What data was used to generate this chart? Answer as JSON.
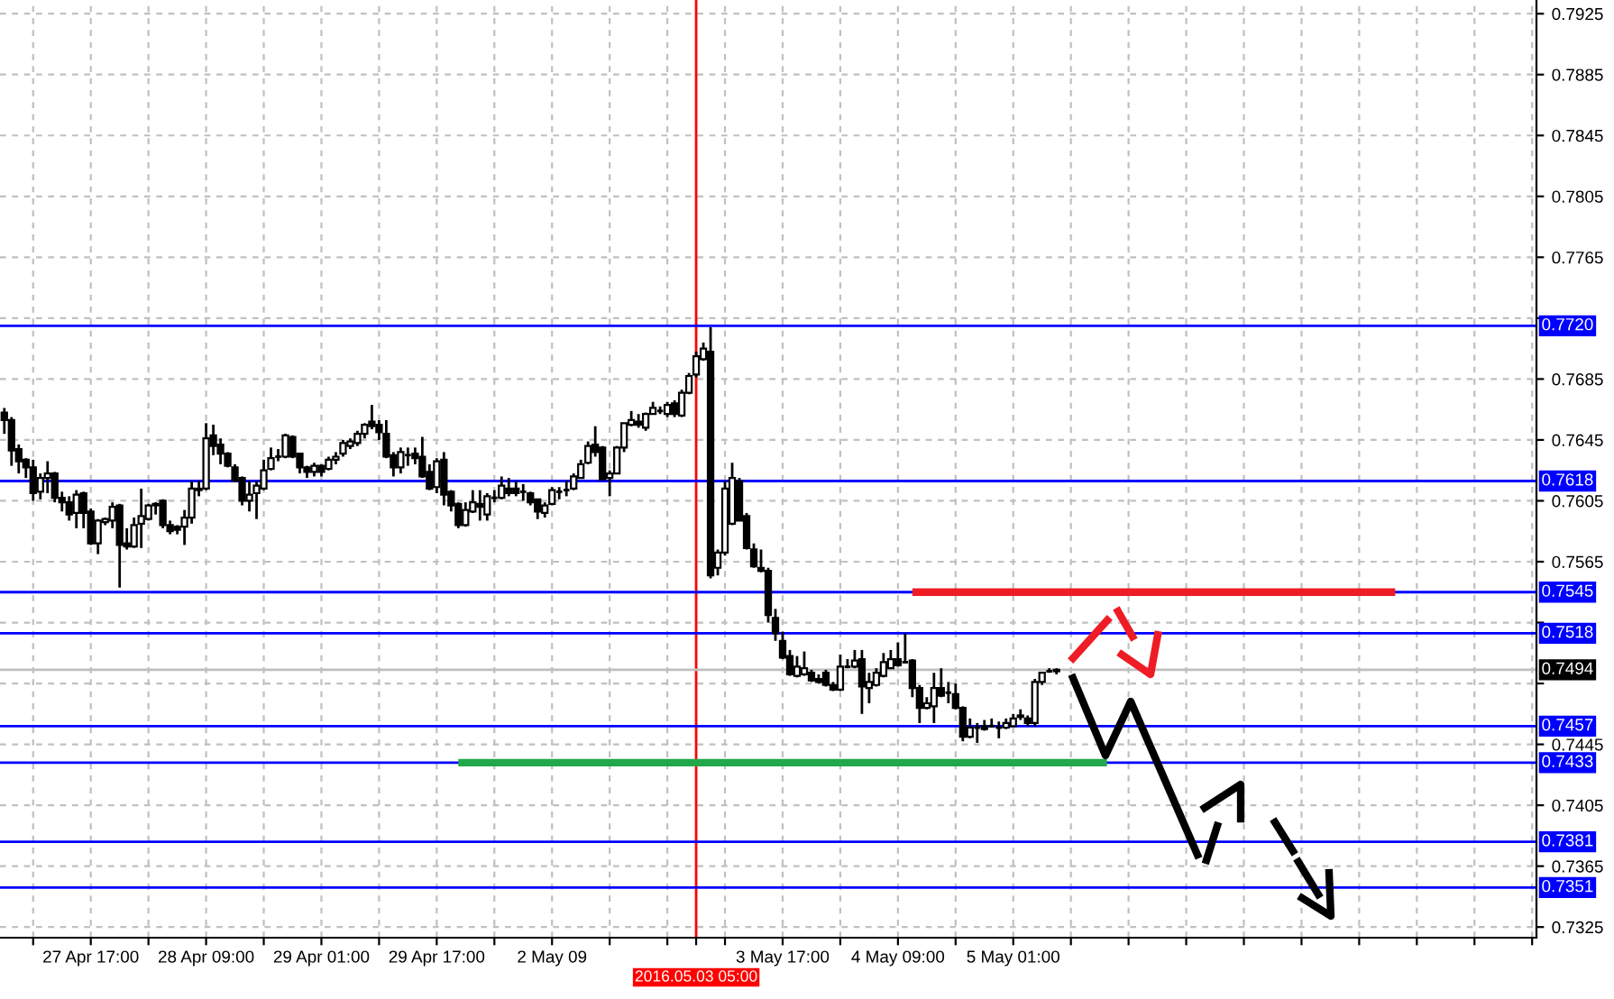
{
  "chart_data": {
    "type": "candlestick",
    "categories": [
      null,
      null,
      null,
      null,
      null,
      null,
      null,
      null,
      null,
      null,
      null,
      null,
      "27 Apr 17:00",
      null,
      null,
      null,
      null,
      null,
      null,
      null,
      null,
      null,
      null,
      null,
      null,
      null,
      null,
      null,
      "28 Apr 09:00",
      null,
      null,
      null,
      null,
      null,
      null,
      null,
      null,
      null,
      null,
      null,
      null,
      null,
      null,
      null,
      "29 Apr 01:00",
      null,
      null,
      null,
      null,
      null,
      null,
      null,
      null,
      null,
      null,
      null,
      null,
      null,
      null,
      null,
      "29 Apr 17:00",
      null,
      null,
      null,
      null,
      null,
      null,
      null,
      null,
      null,
      null,
      null,
      null,
      null,
      null,
      null,
      "2 May 09",
      null,
      null,
      null,
      null,
      null,
      null,
      null,
      null,
      null,
      null,
      null,
      null,
      null,
      null,
      null,
      null,
      null,
      null,
      null,
      "2016.05.03 05:00",
      null,
      null,
      null,
      null,
      null,
      null,
      null,
      null,
      null,
      null,
      null,
      "3 May 17:00",
      null,
      null,
      null,
      null,
      null,
      null,
      null,
      null,
      null,
      null,
      null,
      null,
      null,
      null,
      null,
      "4 May 09:00",
      null,
      null,
      null,
      null,
      null,
      null,
      null,
      null,
      null,
      null,
      null,
      null,
      null,
      null,
      null,
      "5 May 01:00",
      null,
      null,
      null,
      null,
      null,
      null,
      null,
      null,
      null,
      null,
      null,
      null,
      null,
      null,
      null,
      null,
      null,
      null,
      null,
      null,
      null,
      null,
      null,
      null,
      null,
      null,
      null,
      null,
      null,
      null,
      null,
      null,
      null,
      null,
      null,
      null,
      null,
      null,
      null,
      null,
      null,
      null,
      null,
      null,
      null,
      null,
      null,
      null,
      null,
      null,
      null,
      null,
      null,
      null,
      null,
      null,
      null,
      null,
      null,
      null,
      null,
      null,
      null,
      null,
      null,
      null,
      null,
      null,
      null,
      null,
      null,
      null
    ],
    "ohlc": [
      [
        0.7663,
        0.7666,
        0.7649,
        0.7658
      ],
      [
        0.7658,
        0.766,
        0.7628,
        0.7638
      ],
      [
        0.7639,
        0.7642,
        0.7623,
        0.7631
      ],
      [
        0.7632,
        0.7633,
        0.762,
        0.7627
      ],
      [
        0.7627,
        0.7632,
        0.7605,
        0.761
      ],
      [
        0.7611,
        0.7623,
        0.7606,
        0.762
      ],
      [
        0.762,
        0.7631,
        0.761,
        0.7623
      ],
      [
        0.7623,
        0.7624,
        0.7604,
        0.7607
      ],
      [
        0.7607,
        0.7611,
        0.7598,
        0.7604
      ],
      [
        0.7604,
        0.7608,
        0.7592,
        0.7596
      ],
      [
        0.7597,
        0.7612,
        0.7587,
        0.7609
      ],
      [
        0.761,
        0.7611,
        0.7587,
        0.7597
      ],
      [
        0.7598,
        0.76,
        0.7576,
        0.7577
      ],
      [
        0.7577,
        0.7593,
        0.757,
        0.7592
      ],
      [
        0.7591,
        0.7594,
        0.7589,
        0.7593
      ],
      [
        0.7592,
        0.7604,
        0.7587,
        0.7601
      ],
      [
        0.7602,
        0.7603,
        0.7548,
        0.7576
      ],
      [
        0.7577,
        0.7587,
        0.7573,
        0.7575
      ],
      [
        0.7575,
        0.7594,
        0.7574,
        0.7589
      ],
      [
        0.759,
        0.7613,
        0.7574,
        0.7595
      ],
      [
        0.7593,
        0.7603,
        0.7592,
        0.7602
      ],
      [
        0.7602,
        0.7604,
        0.7596,
        0.7603
      ],
      [
        0.7605,
        0.7606,
        0.7587,
        0.7589
      ],
      [
        0.7589,
        0.7592,
        0.7583,
        0.7585
      ],
      [
        0.7588,
        0.7589,
        0.7583,
        0.7586
      ],
      [
        0.7588,
        0.7599,
        0.7576,
        0.7594
      ],
      [
        0.7594,
        0.7618,
        0.759,
        0.7613
      ],
      [
        0.7612,
        0.7618,
        0.7608,
        0.7613
      ],
      [
        0.7613,
        0.7656,
        0.7612,
        0.7646
      ],
      [
        0.7648,
        0.7655,
        0.7635,
        0.7641
      ],
      [
        0.7642,
        0.7646,
        0.7629,
        0.7636
      ],
      [
        0.7636,
        0.7637,
        0.7627,
        0.7628
      ],
      [
        0.7627,
        0.7629,
        0.7618,
        0.7618
      ],
      [
        0.762,
        0.7621,
        0.7602,
        0.7605
      ],
      [
        0.7605,
        0.7618,
        0.7598,
        0.7609
      ],
      [
        0.761,
        0.7618,
        0.7593,
        0.7615
      ],
      [
        0.7613,
        0.7632,
        0.7612,
        0.7625
      ],
      [
        0.7626,
        0.764,
        0.7625,
        0.7633
      ],
      [
        0.7634,
        0.7639,
        0.7631,
        0.7634
      ],
      [
        0.7634,
        0.7649,
        0.7633,
        0.7648
      ],
      [
        0.7647,
        0.7648,
        0.7633,
        0.7634
      ],
      [
        0.7636,
        0.7636,
        0.7623,
        0.7627
      ],
      [
        0.7627,
        0.7628,
        0.762,
        0.7624
      ],
      [
        0.7624,
        0.763,
        0.7621,
        0.7628
      ],
      [
        0.7628,
        0.7629,
        0.7621,
        0.7624
      ],
      [
        0.7626,
        0.7634,
        0.7625,
        0.7632
      ],
      [
        0.7632,
        0.7637,
        0.7629,
        0.7634
      ],
      [
        0.7636,
        0.7645,
        0.7634,
        0.7643
      ],
      [
        0.7641,
        0.7646,
        0.7639,
        0.7644
      ],
      [
        0.7643,
        0.7651,
        0.7641,
        0.7649
      ],
      [
        0.7649,
        0.7656,
        0.7646,
        0.7655
      ],
      [
        0.7657,
        0.7668,
        0.7652,
        0.7654
      ],
      [
        0.7655,
        0.7658,
        0.7645,
        0.765
      ],
      [
        0.7649,
        0.7658,
        0.7633,
        0.7634
      ],
      [
        0.7635,
        0.7637,
        0.7621,
        0.7627
      ],
      [
        0.7627,
        0.764,
        0.7623,
        0.7637
      ],
      [
        0.7635,
        0.764,
        0.7628,
        0.7635
      ],
      [
        0.7636,
        0.764,
        0.7629,
        0.7633
      ],
      [
        0.7634,
        0.7647,
        0.762,
        0.7621
      ],
      [
        0.7624,
        0.7629,
        0.7612,
        0.7613
      ],
      [
        0.7614,
        0.7633,
        0.761,
        0.7631
      ],
      [
        0.7632,
        0.7637,
        0.7602,
        0.7609
      ],
      [
        0.7611,
        0.7612,
        0.7598,
        0.7602
      ],
      [
        0.7603,
        0.7604,
        0.7587,
        0.7589
      ],
      [
        0.7589,
        0.7604,
        0.7588,
        0.7599
      ],
      [
        0.7598,
        0.7612,
        0.7597,
        0.7604
      ],
      [
        0.7603,
        0.7612,
        0.7592,
        0.7601
      ],
      [
        0.7596,
        0.761,
        0.7592,
        0.7608
      ],
      [
        0.7607,
        0.7612,
        0.7604,
        0.7607
      ],
      [
        0.7607,
        0.7621,
        0.7606,
        0.7615
      ],
      [
        0.7613,
        0.762,
        0.7608,
        0.761
      ],
      [
        0.7613,
        0.7618,
        0.7608,
        0.761
      ],
      [
        0.7611,
        0.7616,
        0.7605,
        0.7611
      ],
      [
        0.761,
        0.7611,
        0.7602,
        0.7604
      ],
      [
        0.7606,
        0.7606,
        0.7593,
        0.7598
      ],
      [
        0.7597,
        0.7604,
        0.7594,
        0.7602
      ],
      [
        0.7603,
        0.7614,
        0.7602,
        0.7612
      ],
      [
        0.7611,
        0.7614,
        0.7606,
        0.7611
      ],
      [
        0.7612,
        0.7618,
        0.7608,
        0.7612
      ],
      [
        0.7613,
        0.7623,
        0.7612,
        0.7621
      ],
      [
        0.762,
        0.7632,
        0.762,
        0.7629
      ],
      [
        0.763,
        0.7644,
        0.7629,
        0.7641
      ],
      [
        0.7642,
        0.7654,
        0.7634,
        0.7637
      ],
      [
        0.764,
        0.7641,
        0.7619,
        0.7619
      ],
      [
        0.762,
        0.7625,
        0.7608,
        0.7623
      ],
      [
        0.7623,
        0.7641,
        0.7623,
        0.764
      ],
      [
        0.764,
        0.7656,
        0.7637,
        0.7656
      ],
      [
        0.7655,
        0.7664,
        0.7654,
        0.7658
      ],
      [
        0.7657,
        0.7662,
        0.7653,
        0.7655
      ],
      [
        0.7653,
        0.7663,
        0.7651,
        0.7662
      ],
      [
        0.7662,
        0.767,
        0.7662,
        0.7666
      ],
      [
        0.7664,
        0.7667,
        0.7662,
        0.7664
      ],
      [
        0.7662,
        0.767,
        0.766,
        0.7668
      ],
      [
        0.7669,
        0.7671,
        0.766,
        0.7662
      ],
      [
        0.7661,
        0.7678,
        0.766,
        0.7676
      ],
      [
        0.7676,
        0.7689,
        0.7675,
        0.7687
      ],
      [
        0.7688,
        0.7703,
        0.7686,
        0.77
      ],
      [
        0.7698,
        0.7709,
        0.7697,
        0.7705
      ],
      [
        0.7703,
        0.7719,
        0.7554,
        0.7556
      ],
      [
        0.7561,
        0.7573,
        0.7556,
        0.7571
      ],
      [
        0.7571,
        0.7618,
        0.7569,
        0.7613
      ],
      [
        0.759,
        0.763,
        0.7589,
        0.762
      ],
      [
        0.7618,
        0.762,
        0.7592,
        0.7592
      ],
      [
        0.7595,
        0.7597,
        0.7573,
        0.7574
      ],
      [
        0.7573,
        0.7577,
        0.7561,
        0.7562
      ],
      [
        0.7561,
        0.7573,
        0.7558,
        0.7559
      ],
      [
        0.7559,
        0.7561,
        0.7525,
        0.753
      ],
      [
        0.7528,
        0.7534,
        0.7513,
        0.7518
      ],
      [
        0.7513,
        0.7519,
        0.7501,
        0.7502
      ],
      [
        0.7503,
        0.7507,
        0.749,
        0.7491
      ],
      [
        0.749,
        0.7503,
        0.7489,
        0.7496
      ],
      [
        0.7491,
        0.7506,
        0.749,
        0.7495
      ],
      [
        0.7492,
        0.7494,
        0.7486,
        0.7487
      ],
      [
        0.7488,
        0.7491,
        0.7485,
        0.7486
      ],
      [
        0.7492,
        0.7494,
        0.7483,
        0.7484
      ],
      [
        0.7484,
        0.7486,
        0.748,
        0.7481
      ],
      [
        0.7481,
        0.7504,
        0.748,
        0.7496
      ],
      [
        0.7496,
        0.7501,
        0.7495,
        0.7496
      ],
      [
        0.7496,
        0.7507,
        0.7495,
        0.75
      ],
      [
        0.7501,
        0.7507,
        0.7465,
        0.7483
      ],
      [
        0.7482,
        0.7492,
        0.7472,
        0.7486
      ],
      [
        0.7484,
        0.7495,
        0.7483,
        0.7492
      ],
      [
        0.749,
        0.7505,
        0.7489,
        0.7499
      ],
      [
        0.7495,
        0.7507,
        0.7495,
        0.7501
      ],
      [
        0.7501,
        0.7512,
        0.7496,
        0.7497
      ],
      [
        0.7499,
        0.7518,
        0.7499,
        0.7499
      ],
      [
        0.75,
        0.7501,
        0.7476,
        0.7482
      ],
      [
        0.7482,
        0.7484,
        0.7459,
        0.7469
      ],
      [
        0.7469,
        0.7476,
        0.7468,
        0.7472
      ],
      [
        0.747,
        0.7492,
        0.7459,
        0.7482
      ],
      [
        0.7482,
        0.7495,
        0.7476,
        0.7477
      ],
      [
        0.7479,
        0.7486,
        0.7472,
        0.7479
      ],
      [
        0.7478,
        0.7485,
        0.7468,
        0.7469
      ],
      [
        0.7469,
        0.747,
        0.7447,
        0.745
      ],
      [
        0.745,
        0.7462,
        0.7449,
        0.7456
      ],
      [
        0.7456,
        0.7459,
        0.7446,
        0.7456
      ],
      [
        0.7457,
        0.7461,
        0.7454,
        0.7455
      ],
      [
        0.7457,
        0.7462,
        0.7456,
        0.7457
      ],
      [
        0.7456,
        0.746,
        0.7449,
        0.7456
      ],
      [
        0.7456,
        0.7462,
        0.7455,
        0.7459
      ],
      [
        0.7457,
        0.7465,
        0.7457,
        0.7462
      ],
      [
        0.7463,
        0.7468,
        0.7461,
        0.7464
      ],
      [
        0.7462,
        0.7464,
        0.7457,
        0.7459
      ],
      [
        0.7459,
        0.7488,
        0.7457,
        0.7486
      ],
      [
        0.7486,
        0.7492,
        0.7484,
        0.7492
      ],
      [
        0.7493,
        0.7495,
        0.7492,
        0.7493
      ],
      [
        0.7493,
        0.7495,
        0.7491,
        0.7494
      ],
      null,
      null,
      null,
      null,
      null,
      null,
      null,
      null,
      null,
      null,
      null,
      null,
      null,
      null,
      null,
      null,
      null,
      null,
      null,
      null,
      null,
      null,
      null,
      null,
      null,
      null,
      null,
      null,
      null,
      null,
      null,
      null,
      null,
      null,
      null,
      null,
      null,
      null,
      null,
      null,
      null,
      null,
      null,
      null,
      null,
      null,
      null,
      null,
      null,
      null,
      null,
      null,
      null,
      null,
      null,
      null,
      null,
      null,
      null,
      null,
      null,
      null,
      null,
      null,
      null,
      null
    ],
    "series": [
      {
        "type": "line",
        "color": "#ee1c25",
        "values": [
          null,
          null,
          null,
          null,
          null,
          null,
          null,
          null,
          null,
          null,
          null,
          null,
          null,
          null,
          null,
          null,
          null,
          null,
          null,
          null,
          null,
          null,
          null,
          null,
          null,
          null,
          null,
          null,
          null,
          null,
          null,
          null,
          null,
          null,
          null,
          null,
          null,
          null,
          null,
          null,
          null,
          null,
          null,
          null,
          null,
          null,
          null,
          null,
          null,
          null,
          null,
          null,
          null,
          null,
          null,
          null,
          null,
          null,
          null,
          null,
          null,
          null,
          null,
          null,
          null,
          null,
          null,
          null,
          null,
          null,
          null,
          null,
          null,
          null,
          null,
          null,
          null,
          null,
          null,
          null,
          null,
          null,
          null,
          null,
          null,
          null,
          null,
          null,
          null,
          null,
          null,
          null,
          null,
          null,
          null,
          null,
          null,
          null,
          null,
          null,
          null,
          null,
          null,
          null,
          null,
          null,
          null,
          null,
          null,
          null,
          null,
          null,
          null,
          null,
          null,
          null,
          null,
          null,
          null,
          null,
          null,
          null,
          null,
          null,
          null,
          null,
          0.7545,
          null,
          null,
          null,
          null,
          null,
          null,
          null,
          null,
          null,
          null,
          null,
          null,
          null,
          null,
          null,
          null,
          null,
          null,
          null,
          null,
          null,
          null,
          null,
          null,
          null,
          null,
          null,
          null,
          null,
          null,
          null,
          null,
          null,
          null,
          null,
          null,
          null,
          null,
          null,
          null,
          null,
          null,
          null,
          null,
          null,
          null,
          null,
          null,
          null,
          null,
          null,
          null,
          null,
          null,
          null,
          null,
          null,
          null,
          null,
          null,
          null,
          null,
          null,
          null,
          null,
          null,
          0.7545,
          null,
          null,
          null,
          null,
          null,
          null,
          null,
          null,
          null,
          null,
          null,
          null,
          null,
          null,
          null,
          null,
          null,
          null,
          null
        ]
      },
      {
        "type": "line",
        "color": "#22a84a",
        "values": [
          null,
          null,
          null,
          null,
          null,
          null,
          null,
          null,
          null,
          null,
          null,
          null,
          null,
          null,
          null,
          null,
          null,
          null,
          null,
          null,
          null,
          null,
          null,
          null,
          null,
          null,
          null,
          null,
          null,
          null,
          null,
          null,
          null,
          null,
          null,
          null,
          null,
          null,
          null,
          null,
          null,
          null,
          null,
          null,
          null,
          null,
          null,
          null,
          null,
          null,
          null,
          null,
          null,
          null,
          null,
          null,
          null,
          null,
          null,
          null,
          null,
          null,
          null,
          0.7433,
          null,
          null,
          null,
          null,
          null,
          null,
          null,
          null,
          null,
          null,
          null,
          null,
          null,
          null,
          null,
          null,
          null,
          null,
          null,
          null,
          null,
          null,
          null,
          null,
          null,
          null,
          null,
          null,
          null,
          null,
          null,
          null,
          null,
          null,
          null,
          null,
          null,
          null,
          null,
          null,
          null,
          null,
          null,
          null,
          null,
          null,
          null,
          null,
          null,
          null,
          null,
          null,
          null,
          null,
          null,
          null,
          null,
          null,
          null,
          null,
          null,
          null,
          null,
          null,
          null,
          null,
          null,
          null,
          null,
          null,
          null,
          null,
          null,
          null,
          null,
          null,
          null,
          null,
          null,
          null,
          null,
          null,
          null,
          null,
          null,
          null,
          null,
          null,
          null,
          0.7433,
          null,
          null,
          null,
          null,
          null,
          null,
          null,
          null,
          null,
          null,
          null,
          null,
          null,
          null,
          null,
          null,
          null,
          null,
          null,
          null,
          null,
          null,
          null,
          null,
          null,
          null,
          null,
          null,
          null,
          null,
          null,
          null,
          null,
          null,
          null,
          null,
          null,
          null,
          null,
          null,
          null,
          null,
          null,
          null,
          null,
          null,
          null,
          null,
          null,
          null,
          null,
          null,
          null,
          null,
          null,
          null,
          null,
          null,
          null
        ]
      }
    ],
    "ref_lines": [
      {
        "axis": "x",
        "value": "2016.05.03 05:00",
        "color": "#ff0000"
      },
      {
        "axis": "y",
        "value": 0.772,
        "label": "0.7720",
        "color": "#0000ff"
      },
      {
        "axis": "y",
        "value": 0.7618,
        "label": "0.7618",
        "color": "#0000ff"
      },
      {
        "axis": "y",
        "value": 0.7545,
        "label": "0.7545",
        "color": "#0000ff"
      },
      {
        "axis": "y",
        "value": 0.7518,
        "label": "0.7518",
        "color": "#0000ff"
      },
      {
        "axis": "y",
        "value": 0.7494,
        "label": "0.7494",
        "color": "#c0c0c0"
      },
      {
        "axis": "y",
        "value": 0.7457,
        "label": "0.7457",
        "color": "#0000ff"
      },
      {
        "axis": "y",
        "value": 0.7433,
        "label": "0.7433",
        "color": "#0000ff"
      },
      {
        "axis": "y",
        "value": 0.7381,
        "label": "0.7381",
        "color": "#0000ff"
      },
      {
        "axis": "y",
        "value": 0.7351,
        "label": "0.7351",
        "color": "#0000ff"
      }
    ],
    "ylim": [
      0.7318,
      0.7934
    ],
    "yticks": [
      0.7925,
      0.7885,
      0.7845,
      0.7805,
      0.7765,
      {
        "value": 0.7725,
        "label": null
      },
      0.7685,
      0.7645,
      0.7605,
      0.7565,
      {
        "value": 0.7525,
        "label": null
      },
      {
        "value": 0.7485,
        "label": null
      },
      0.7445,
      0.7405,
      0.7365,
      0.7325
    ],
    "grid": true
  }
}
